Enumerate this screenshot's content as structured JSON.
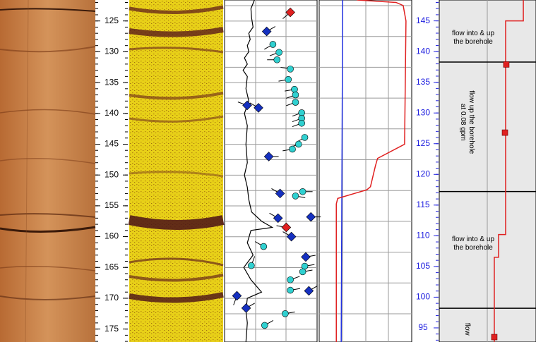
{
  "depth_axis": {
    "ylim": [
      121.6,
      177.1
    ],
    "ticks": [
      125,
      130,
      135,
      140,
      145,
      150,
      155,
      160,
      165,
      170,
      175
    ]
  },
  "elevation_axis": {
    "ylim": [
      148.4,
      92.7
    ],
    "ticks": [
      95,
      100,
      105,
      110,
      115,
      120,
      125,
      130,
      135,
      140,
      145
    ]
  },
  "tadpoles": [
    {
      "depth": 123.6,
      "dip": 64,
      "azimuth": 230,
      "kind": "highlight"
    },
    {
      "depth": 126.7,
      "dip": 41,
      "azimuth": 60,
      "kind": "diamond"
    },
    {
      "depth": 128.8,
      "dip": 47,
      "azimuth": 240,
      "kind": "circle"
    },
    {
      "depth": 130.1,
      "dip": 53,
      "azimuth": 250,
      "kind": "circle"
    },
    {
      "depth": 131.3,
      "dip": 51,
      "azimuth": 270,
      "kind": "circle"
    },
    {
      "depth": 132.8,
      "dip": 64,
      "azimuth": 280,
      "kind": "circle"
    },
    {
      "depth": 134.5,
      "dip": 62,
      "azimuth": 260,
      "kind": "circle"
    },
    {
      "depth": 136.1,
      "dip": 68,
      "azimuth": 260,
      "kind": "circle"
    },
    {
      "depth": 137.0,
      "dip": 69,
      "azimuth": 250,
      "kind": "circle"
    },
    {
      "depth": 138.2,
      "dip": 69,
      "azimuth": 250,
      "kind": "circle"
    },
    {
      "depth": 138.7,
      "dip": 22,
      "azimuth": 290,
      "kind": "diamond"
    },
    {
      "depth": 139.1,
      "dip": 33,
      "azimuth": 300,
      "kind": "diamond"
    },
    {
      "depth": 139.9,
      "dip": 75,
      "azimuth": 250,
      "kind": "circle"
    },
    {
      "depth": 140.8,
      "dip": 75,
      "azimuth": 250,
      "kind": "circle"
    },
    {
      "depth": 141.6,
      "dip": 75,
      "azimuth": 250,
      "kind": "circle"
    },
    {
      "depth": 143.9,
      "dip": 78,
      "azimuth": 240,
      "kind": "circle"
    },
    {
      "depth": 145.0,
      "dip": 72,
      "azimuth": 250,
      "kind": "circle"
    },
    {
      "depth": 145.8,
      "dip": 66,
      "azimuth": 260,
      "kind": "circle"
    },
    {
      "depth": 147.0,
      "dip": 43,
      "azimuth": 90,
      "kind": "diamond"
    },
    {
      "depth": 152.7,
      "dip": 76,
      "azimuth": 90,
      "kind": "circle"
    },
    {
      "depth": 153.4,
      "dip": 69,
      "azimuth": 100,
      "kind": "circle"
    },
    {
      "depth": 153.0,
      "dip": 54,
      "azimuth": 300,
      "kind": "diamond"
    },
    {
      "depth": 157.0,
      "dip": 52,
      "azimuth": 300,
      "kind": "diamond"
    },
    {
      "depth": 156.8,
      "dip": 84,
      "azimuth": 90,
      "kind": "diamond"
    },
    {
      "depth": 158.5,
      "dip": 60,
      "azimuth": 280,
      "kind": "highlight"
    },
    {
      "depth": 160.0,
      "dip": 65,
      "azimuth": 300,
      "kind": "diamond"
    },
    {
      "depth": 161.6,
      "dip": 38,
      "azimuth": 300,
      "kind": "circle"
    },
    {
      "depth": 163.3,
      "dip": 79,
      "azimuth": 80,
      "kind": "diamond"
    },
    {
      "depth": 164.7,
      "dip": 26,
      "azimuth": 20,
      "kind": "circle"
    },
    {
      "depth": 164.8,
      "dip": 78,
      "azimuth": 80,
      "kind": "circle"
    },
    {
      "depth": 165.7,
      "dip": 76,
      "azimuth": 80,
      "kind": "circle"
    },
    {
      "depth": 167.0,
      "dip": 64,
      "azimuth": 70,
      "kind": "circle"
    },
    {
      "depth": 168.7,
      "dip": 64,
      "azimuth": 80,
      "kind": "circle"
    },
    {
      "depth": 169.6,
      "dip": 12,
      "azimuth": 200,
      "kind": "diamond"
    },
    {
      "depth": 168.8,
      "dip": 82,
      "azimuth": 60,
      "kind": "diamond"
    },
    {
      "depth": 171.6,
      "dip": 21,
      "azimuth": 60,
      "kind": "diamond"
    },
    {
      "depth": 172.5,
      "dip": 59,
      "azimuth": 80,
      "kind": "circle"
    },
    {
      "depth": 174.4,
      "dip": 39,
      "azimuth": 60,
      "kind": "circle"
    }
  ],
  "caliper": {
    "depth": [
      121.6,
      123,
      124.5,
      126,
      127,
      128,
      129,
      130,
      131,
      132,
      133,
      134,
      136,
      138,
      140,
      142,
      145,
      148,
      150,
      152,
      154,
      156,
      157.5,
      158.5,
      159,
      161,
      163,
      165,
      167,
      169,
      170,
      172,
      174,
      177.1
    ],
    "values": [
      32.3,
      28.5,
      29.2,
      30.8,
      26.2,
      27.7,
      24.6,
      26.2,
      21.5,
      24.6,
      20,
      24.6,
      23.1,
      26.2,
      21.5,
      24.6,
      23.1,
      24.6,
      21.5,
      24.6,
      26.2,
      29.2,
      40,
      51.5,
      28.5,
      24.6,
      30.8,
      20.8,
      28.5,
      40,
      24.6,
      23.1,
      24.6,
      23.1
    ]
  },
  "fluid_resistivity": {
    "depth": [
      121.6,
      122,
      122.5,
      125,
      145,
      147.3,
      148.5,
      151.9,
      152.4,
      153.8,
      154.7,
      177.1
    ],
    "values": [
      40.8,
      83.1,
      90.8,
      93.8,
      92.3,
      63.1,
      60.8,
      55.4,
      51.5,
      20,
      18.5,
      18.5
    ]
  },
  "temperature": {
    "depth": [
      121.6,
      177.1
    ],
    "values": [
      25.4,
      23.8
    ]
  },
  "flow_profile": {
    "elevation": [
      148.4,
      145,
      145,
      110.2,
      110.2,
      106.5,
      106.5,
      92.7
    ],
    "values": [
      86.9,
      86.9,
      68.6,
      68.6,
      61.3,
      61.3,
      56.9,
      56.9
    ]
  },
  "flow_measurements": {
    "elevation": [
      137.9,
      126.8,
      93.5
    ],
    "values": [
      69.3,
      67.9,
      56.9
    ]
  },
  "zone_boundaries": [
    138.3,
    117.2,
    98.2
  ],
  "annotations": [
    {
      "lines": [
        "flow into & up",
        "the borehole"
      ],
      "elevation": 142.3,
      "rotated": false
    },
    {
      "lines": [
        "flow up the borehole",
        "at 0.08 gpm"
      ],
      "elevation": 128.5,
      "rotated": true
    },
    {
      "lines": [
        "flow into & up",
        "the borehole"
      ],
      "elevation": 108.8,
      "rotated": false
    },
    {
      "lines": [
        "flow"
      ],
      "elevation": 94.8,
      "rotated": true
    }
  ]
}
